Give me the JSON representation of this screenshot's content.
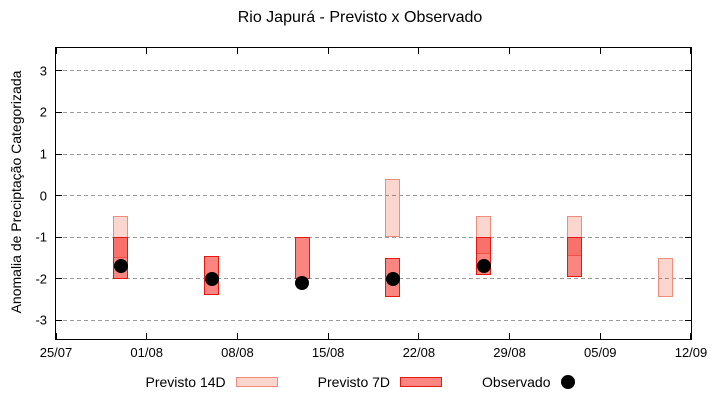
{
  "title": "Rio Japurá - Previsto x Observado",
  "chart_data": {
    "type": "bar",
    "subtype": "range-boxes-with-observed-points",
    "title": "Rio Japurá - Previsto x Observado",
    "xlabel": "",
    "ylabel": "Anomalia de Preciptação Categorizada",
    "x_tick_labels": [
      "25/07",
      "01/08",
      "08/08",
      "15/08",
      "22/08",
      "29/08",
      "05/09",
      "12/09"
    ],
    "x_tick_days": [
      0,
      7,
      14,
      21,
      28,
      35,
      42,
      49
    ],
    "x_range_days": 49,
    "y_ticks": [
      3,
      2,
      1,
      0,
      -1,
      -2,
      -3
    ],
    "ylim": [
      -3.45,
      3.55
    ],
    "grid": "horizontal-dashed-gray",
    "legend_position": "bottom-center",
    "colors": {
      "previsto_14d_fill": "rgba(239,68,35,0.22)",
      "previsto_14d_border": "#ef8c7c",
      "previsto_7d_fill": "rgba(246,32,25,0.55)",
      "previsto_7d_border": "#e61610",
      "observado": "#000000",
      "gridline": "#9a9a9a",
      "axis": "#000000"
    },
    "series": [
      {
        "name": "Previsto 14D",
        "type": "range-bar",
        "points": [
          {
            "x_date": "30/07",
            "x_day": 5,
            "high": -0.5,
            "low": -1.5
          },
          {
            "x_date": "20/08",
            "x_day": 26,
            "high": 0.4,
            "low": -1.0
          },
          {
            "x_date": "27/08",
            "x_day": 33,
            "high": -0.5,
            "low": -1.4
          },
          {
            "x_date": "03/09",
            "x_day": 40,
            "high": -0.5,
            "low": -1.45
          },
          {
            "x_date": "10/09",
            "x_day": 47,
            "high": -1.5,
            "low": -2.45
          }
        ]
      },
      {
        "name": "Previsto 7D",
        "type": "range-bar",
        "points": [
          {
            "x_date": "30/07",
            "x_day": 5,
            "high": -1.0,
            "low": -2.0
          },
          {
            "x_date": "06/08",
            "x_day": 12,
            "high": -1.45,
            "low": -2.4
          },
          {
            "x_date": "13/08",
            "x_day": 19,
            "high": -1.0,
            "low": -2.0
          },
          {
            "x_date": "20/08",
            "x_day": 26,
            "high": -1.5,
            "low": -2.45
          },
          {
            "x_date": "27/08",
            "x_day": 33,
            "high": -1.0,
            "low": -1.9
          },
          {
            "x_date": "03/09",
            "x_day": 40,
            "high": -1.0,
            "low": -1.95
          }
        ]
      },
      {
        "name": "Observado",
        "type": "scatter",
        "points": [
          {
            "x_date": "30/07",
            "x_day": 5,
            "value": -1.7
          },
          {
            "x_date": "06/08",
            "x_day": 12,
            "value": -2.0
          },
          {
            "x_date": "13/08",
            "x_day": 19,
            "value": -2.1
          },
          {
            "x_date": "20/08",
            "x_day": 26,
            "value": -2.0
          },
          {
            "x_date": "27/08",
            "x_day": 33,
            "value": -1.7
          }
        ]
      }
    ]
  },
  "legend": {
    "items": [
      {
        "label": "Previsto 14D",
        "swatch": "box-light"
      },
      {
        "label": "Previsto 7D",
        "swatch": "box-dark"
      },
      {
        "label": "Observado",
        "swatch": "dot"
      }
    ]
  }
}
